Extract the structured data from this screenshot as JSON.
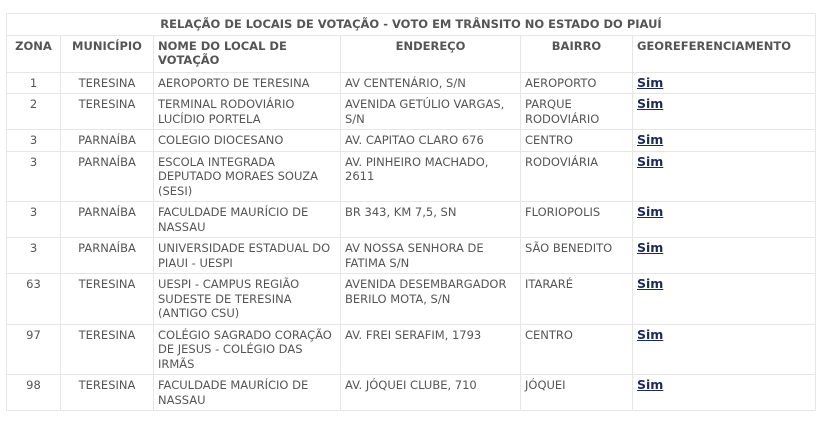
{
  "title": "RELAÇÃO DE LOCAIS DE VOTAÇÃO - VOTO EM TRÂNSITO NO ESTADO DO PIAUÍ",
  "headers": [
    "ZONA",
    "MUNICÍPIO",
    "NOME DO LOCAL DE VOTAÇÃO",
    "ENDEREÇO",
    "BAIRRO",
    "GEOREFERENCIAMENTO"
  ],
  "rows": [
    {
      "zona": "1",
      "municipio": "TERESINA",
      "nome": "AEROPORTO DE TERESINA",
      "endereco": "AV CENTENÁRIO, S/N",
      "bairro": "AEROPORTO",
      "geo": "Sim"
    },
    {
      "zona": "2",
      "municipio": "TERESINA",
      "nome": "TERMINAL RODOVIÁRIO LUCÍDIO PORTELA",
      "endereco": "AVENIDA GETÚLIO VARGAS, S/N",
      "bairro": "PARQUE RODOVIÁRIO",
      "geo": "Sim"
    },
    {
      "zona": "3",
      "municipio": "PARNAÍBA",
      "nome": "COLEGIO DIOCESANO",
      "endereco": "AV. CAPITAO CLARO 676",
      "bairro": "CENTRO",
      "geo": "Sim"
    },
    {
      "zona": "3",
      "municipio": "PARNAÍBA",
      "nome": "ESCOLA INTEGRADA DEPUTADO MORAES SOUZA (SESI)",
      "endereco": "AV. PINHEIRO MACHADO, 2611",
      "bairro": "RODOVIÁRIA",
      "geo": "Sim"
    },
    {
      "zona": "3",
      "municipio": "PARNAÍBA",
      "nome": "FACULDADE MAURÍCIO DE NASSAU",
      "endereco": "BR 343, KM 7,5, SN",
      "bairro": "FLORIOPOLIS",
      "geo": "Sim"
    },
    {
      "zona": "3",
      "municipio": "PARNAÍBA",
      "nome": "UNIVERSIDADE ESTADUAL DO PIAUI - UESPI",
      "endereco": "AV NOSSA SENHORA DE FATIMA S/N",
      "bairro": "SÃO BENEDITO",
      "geo": "Sim"
    },
    {
      "zona": "63",
      "municipio": "TERESINA",
      "nome": "UESPI - CAMPUS REGIÃO SUDESTE DE TERESINA (ANTIGO CSU)",
      "endereco": "AVENIDA DESEMBARGADOR BERILO MOTA, S/N",
      "bairro": "ITARARÉ",
      "geo": "Sim"
    },
    {
      "zona": "97",
      "municipio": "TERESINA",
      "nome": "COLÉGIO SAGRADO CORAÇÃO DE JESUS - COLÉGIO DAS IRMÃS",
      "endereco": "AV. FREI SERAFIM, 1793",
      "bairro": "CENTRO",
      "geo": "Sim"
    },
    {
      "zona": "98",
      "municipio": "TERESINA",
      "nome": "FACULDADE MAURÍCIO DE NASSAU",
      "endereco": "AV. JÓQUEI CLUBE, 710",
      "bairro": "JÓQUEI",
      "geo": "Sim"
    }
  ]
}
